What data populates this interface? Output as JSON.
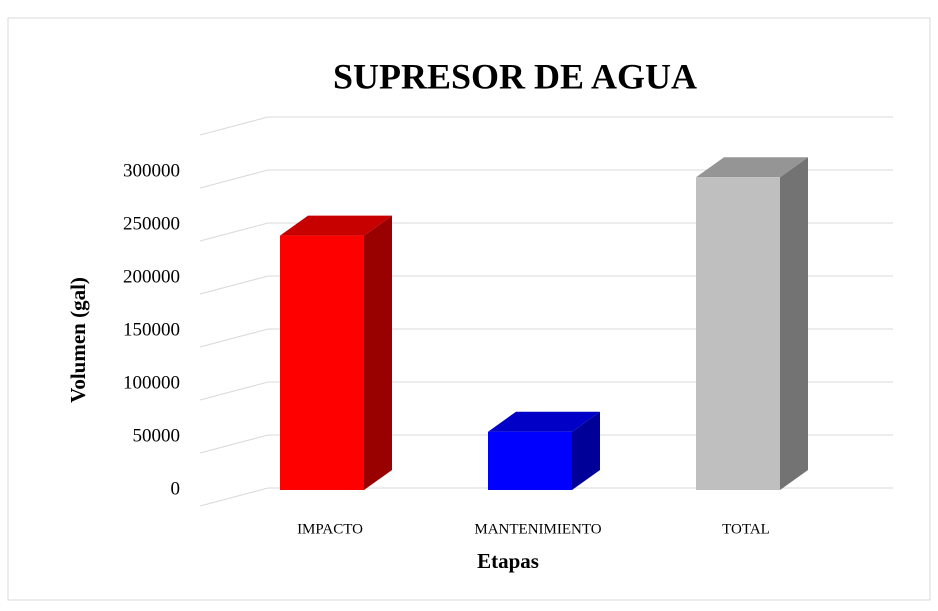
{
  "chart_data": {
    "type": "bar3d",
    "title": "SUPRESOR DE AGUA",
    "x_label": "Etapas",
    "y_label": "Volumen (gal)",
    "categories": [
      "IMPACTO",
      "MANTENIMIENTO",
      "TOTAL"
    ],
    "values": [
      240000,
      55000,
      295000
    ],
    "colors": [
      "#ff0000",
      "#0000ff",
      "#bfbfbf"
    ],
    "ylim": [
      0,
      350000
    ],
    "yticks": [
      0,
      50000,
      100000,
      150000,
      200000,
      250000,
      300000
    ],
    "grid": true
  }
}
